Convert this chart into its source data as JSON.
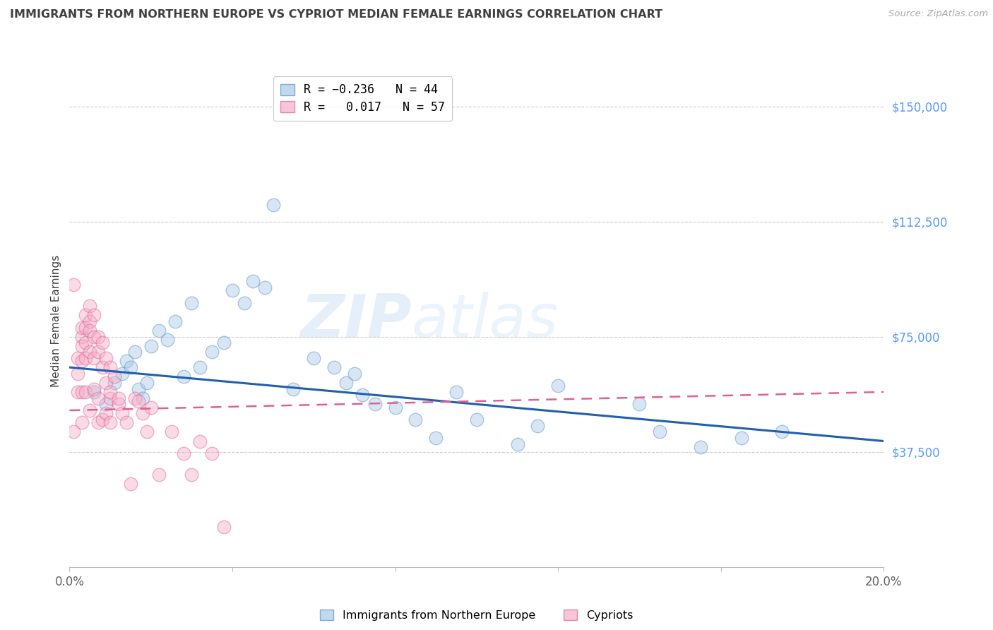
{
  "title": "IMMIGRANTS FROM NORTHERN EUROPE VS CYPRIOT MEDIAN FEMALE EARNINGS CORRELATION CHART",
  "source": "Source: ZipAtlas.com",
  "ylabel": "Median Female Earnings",
  "xlim": [
    0.0,
    0.2
  ],
  "ylim": [
    0,
    160000
  ],
  "yticks": [
    37500,
    75000,
    112500,
    150000
  ],
  "ytick_labels": [
    "$37,500",
    "$75,000",
    "$112,500",
    "$150,000"
  ],
  "xticks": [
    0.0,
    0.04,
    0.08,
    0.12,
    0.16,
    0.2
  ],
  "xtick_labels": [
    "0.0%",
    "",
    "",
    "",
    "",
    "20.0%"
  ],
  "watermark_left": "ZIP",
  "watermark_right": "atlas",
  "blue_scatter_x": [
    0.006,
    0.009,
    0.011,
    0.013,
    0.014,
    0.015,
    0.016,
    0.017,
    0.018,
    0.019,
    0.02,
    0.022,
    0.024,
    0.026,
    0.028,
    0.03,
    0.032,
    0.035,
    0.038,
    0.04,
    0.043,
    0.045,
    0.048,
    0.05,
    0.055,
    0.06,
    0.065,
    0.068,
    0.07,
    0.072,
    0.075,
    0.08,
    0.085,
    0.09,
    0.095,
    0.1,
    0.11,
    0.115,
    0.12,
    0.14,
    0.145,
    0.155,
    0.165,
    0.175
  ],
  "blue_scatter_y": [
    57000,
    53000,
    60000,
    63000,
    67000,
    65000,
    70000,
    58000,
    55000,
    60000,
    72000,
    77000,
    74000,
    80000,
    62000,
    86000,
    65000,
    70000,
    73000,
    90000,
    86000,
    93000,
    91000,
    118000,
    58000,
    68000,
    65000,
    60000,
    63000,
    56000,
    53000,
    52000,
    48000,
    42000,
    57000,
    48000,
    40000,
    46000,
    59000,
    53000,
    44000,
    39000,
    42000,
    44000
  ],
  "pink_scatter_x": [
    0.001,
    0.001,
    0.002,
    0.002,
    0.002,
    0.003,
    0.003,
    0.003,
    0.003,
    0.003,
    0.003,
    0.004,
    0.004,
    0.004,
    0.004,
    0.004,
    0.005,
    0.005,
    0.005,
    0.005,
    0.005,
    0.006,
    0.006,
    0.006,
    0.006,
    0.007,
    0.007,
    0.007,
    0.007,
    0.008,
    0.008,
    0.008,
    0.009,
    0.009,
    0.009,
    0.01,
    0.01,
    0.01,
    0.011,
    0.012,
    0.013,
    0.014,
    0.015,
    0.016,
    0.017,
    0.018,
    0.019,
    0.02,
    0.022,
    0.025,
    0.028,
    0.03,
    0.032,
    0.035,
    0.038,
    0.01,
    0.012
  ],
  "pink_scatter_y": [
    92000,
    44000,
    57000,
    63000,
    68000,
    75000,
    78000,
    72000,
    67000,
    57000,
    47000,
    82000,
    78000,
    73000,
    68000,
    57000,
    85000,
    80000,
    77000,
    70000,
    51000,
    82000,
    75000,
    68000,
    58000,
    75000,
    70000,
    55000,
    47000,
    73000,
    65000,
    48000,
    68000,
    60000,
    50000,
    65000,
    55000,
    47000,
    62000,
    53000,
    50000,
    47000,
    27000,
    55000,
    54000,
    50000,
    44000,
    52000,
    30000,
    44000,
    37000,
    30000,
    41000,
    37000,
    13000,
    57000,
    55000
  ],
  "blue_line_x": [
    0.0,
    0.2
  ],
  "blue_line_y": [
    65000,
    41000
  ],
  "pink_line_x": [
    0.0,
    0.2
  ],
  "pink_line_y": [
    51000,
    57000
  ],
  "scatter_size": 180,
  "scatter_alpha": 0.45,
  "blue_color": "#aac8e8",
  "pink_color": "#f4aec8",
  "blue_edge_color": "#5590c8",
  "pink_edge_color": "#e06090",
  "blue_line_color": "#2060b0",
  "pink_line_color": "#e06090",
  "grid_color": "#cccccc",
  "background_color": "#ffffff",
  "title_color": "#404040",
  "source_color": "#aaaaaa",
  "ytick_color": "#5599ff",
  "xtick_color": "#606060"
}
